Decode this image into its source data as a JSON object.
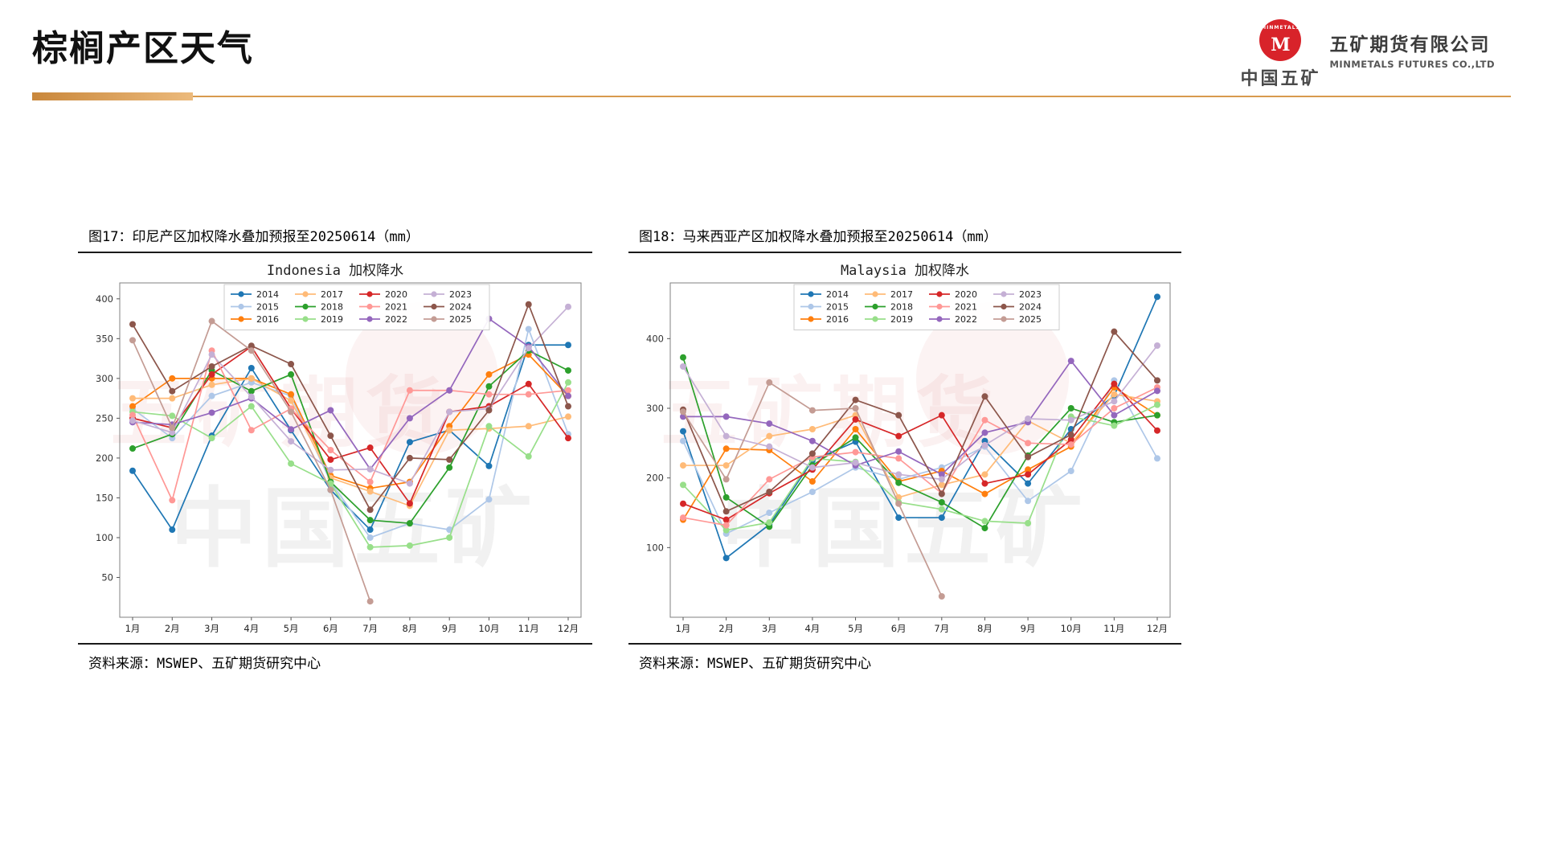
{
  "page": {
    "title": "棕榈产区天气"
  },
  "logo": {
    "badge_text": "MINMETALS",
    "badge_letter": "M",
    "badge_color": "#d8232a",
    "org_cn": "中国五矿",
    "company_cn": "五矿期货有限公司",
    "company_en": "MINMETALS FUTURES CO.,LTD"
  },
  "watermark": {
    "line1": "五矿期货",
    "line2": "中国五矿"
  },
  "figures": [
    {
      "caption": "图17：印尼产区加权降水叠加预报至20250614（mm）",
      "source": "资料来源：MSWEP、五矿期货研究中心"
    },
    {
      "caption": "图18：马来西亚产区加权降水叠加预报至20250614（mm）",
      "source": "资料来源：MSWEP、五矿期货研究中心"
    }
  ],
  "chart_data": [
    {
      "type": "line",
      "title": "Indonesia 加权降水",
      "categories": [
        "1月",
        "2月",
        "3月",
        "4月",
        "5月",
        "6月",
        "7月",
        "8月",
        "9月",
        "10月",
        "11月",
        "12月"
      ],
      "ylim": [
        0,
        420
      ],
      "yticks": [
        50,
        100,
        150,
        200,
        250,
        300,
        350,
        400
      ],
      "grid": false,
      "legend_position": "top-center",
      "series": [
        {
          "name": "2014",
          "color": "#1f77b4",
          "values": [
            184,
            110,
            228,
            313,
            235,
            160,
            110,
            220,
            235,
            190,
            342,
            342
          ]
        },
        {
          "name": "2015",
          "color": "#aec7e8",
          "values": [
            262,
            225,
            278,
            295,
            278,
            170,
            100,
            118,
            110,
            148,
            362,
            230
          ]
        },
        {
          "name": "2016",
          "color": "#ff7f0e",
          "values": [
            265,
            300,
            300,
            300,
            280,
            178,
            162,
            170,
            240,
            305,
            330,
            278
          ]
        },
        {
          "name": "2017",
          "color": "#ffbb78",
          "values": [
            275,
            275,
            292,
            300,
            272,
            175,
            158,
            140,
            235,
            237,
            240,
            252
          ]
        },
        {
          "name": "2018",
          "color": "#2ca02c",
          "values": [
            212,
            230,
            310,
            284,
            305,
            170,
            122,
            118,
            188,
            290,
            335,
            310
          ]
        },
        {
          "name": "2019",
          "color": "#98df8a",
          "values": [
            258,
            253,
            225,
            265,
            193,
            168,
            88,
            90,
            100,
            240,
            202,
            295
          ]
        },
        {
          "name": "2020",
          "color": "#d62728",
          "values": [
            250,
            238,
            305,
            340,
            262,
            198,
            213,
            143,
            258,
            265,
            293,
            225
          ]
        },
        {
          "name": "2021",
          "color": "#ff9896",
          "values": [
            254,
            147,
            335,
            235,
            262,
            210,
            170,
            285,
            285,
            280,
            280,
            285
          ]
        },
        {
          "name": "2022",
          "color": "#9467bd",
          "values": [
            245,
            242,
            257,
            275,
            236,
            260,
            186,
            250,
            285,
            375,
            340,
            278
          ]
        },
        {
          "name": "2023",
          "color": "#c5b0d5",
          "values": [
            247,
            232,
            330,
            277,
            221,
            185,
            186,
            168,
            258,
            262,
            338,
            390
          ]
        },
        {
          "name": "2024",
          "color": "#8c564b",
          "values": [
            368,
            284,
            315,
            341,
            318,
            228,
            135,
            200,
            198,
            260,
            393,
            265
          ]
        },
        {
          "name": "2025",
          "color": "#c49c94",
          "values": [
            348,
            238,
            372,
            335,
            258,
            160,
            20,
            null,
            null,
            null,
            null,
            null
          ]
        }
      ]
    },
    {
      "type": "line",
      "title": "Malaysia 加权降水",
      "categories": [
        "1月",
        "2月",
        "3月",
        "4月",
        "5月",
        "6月",
        "7月",
        "8月",
        "9月",
        "10月",
        "11月",
        "12月"
      ],
      "ylim": [
        0,
        480
      ],
      "yticks": [
        100,
        200,
        300,
        400
      ],
      "grid": false,
      "legend_position": "top-center",
      "series": [
        {
          "name": "2014",
          "color": "#1f77b4",
          "values": [
            267,
            85,
            133,
            225,
            252,
            143,
            143,
            253,
            192,
            270,
            318,
            460
          ]
        },
        {
          "name": "2015",
          "color": "#aec7e8",
          "values": [
            253,
            120,
            150,
            180,
            215,
            198,
            215,
            245,
            167,
            210,
            340,
            228
          ]
        },
        {
          "name": "2016",
          "color": "#ff7f0e",
          "values": [
            140,
            242,
            240,
            195,
            270,
            195,
            210,
            177,
            212,
            245,
            330,
            290
          ]
        },
        {
          "name": "2017",
          "color": "#ffbb78",
          "values": [
            218,
            218,
            260,
            270,
            290,
            172,
            190,
            205,
            282,
            250,
            320,
            310
          ]
        },
        {
          "name": "2018",
          "color": "#2ca02c",
          "values": [
            373,
            172,
            130,
            218,
            258,
            193,
            165,
            128,
            232,
            300,
            280,
            290
          ]
        },
        {
          "name": "2019",
          "color": "#98df8a",
          "values": [
            190,
            125,
            136,
            228,
            223,
            165,
            155,
            138,
            135,
            288,
            275,
            305
          ]
        },
        {
          "name": "2020",
          "color": "#d62728",
          "values": [
            163,
            140,
            178,
            212,
            284,
            260,
            290,
            192,
            205,
            255,
            335,
            268
          ]
        },
        {
          "name": "2021",
          "color": "#ff9896",
          "values": [
            143,
            132,
            198,
            230,
            237,
            228,
            178,
            283,
            250,
            248,
            300,
            330
          ]
        },
        {
          "name": "2022",
          "color": "#9467bd",
          "values": [
            288,
            288,
            278,
            253,
            218,
            238,
            205,
            265,
            280,
            368,
            290,
            325
          ]
        },
        {
          "name": "2023",
          "color": "#c5b0d5",
          "values": [
            360,
            260,
            245,
            215,
            222,
            205,
            198,
            247,
            285,
            283,
            310,
            390
          ]
        },
        {
          "name": "2024",
          "color": "#8c564b",
          "values": [
            298,
            152,
            180,
            235,
            312,
            290,
            177,
            317,
            230,
            262,
            410,
            340
          ]
        },
        {
          "name": "2025",
          "color": "#c49c94",
          "values": [
            295,
            198,
            337,
            297,
            300,
            163,
            30,
            null,
            null,
            null,
            null,
            null
          ]
        }
      ]
    }
  ]
}
